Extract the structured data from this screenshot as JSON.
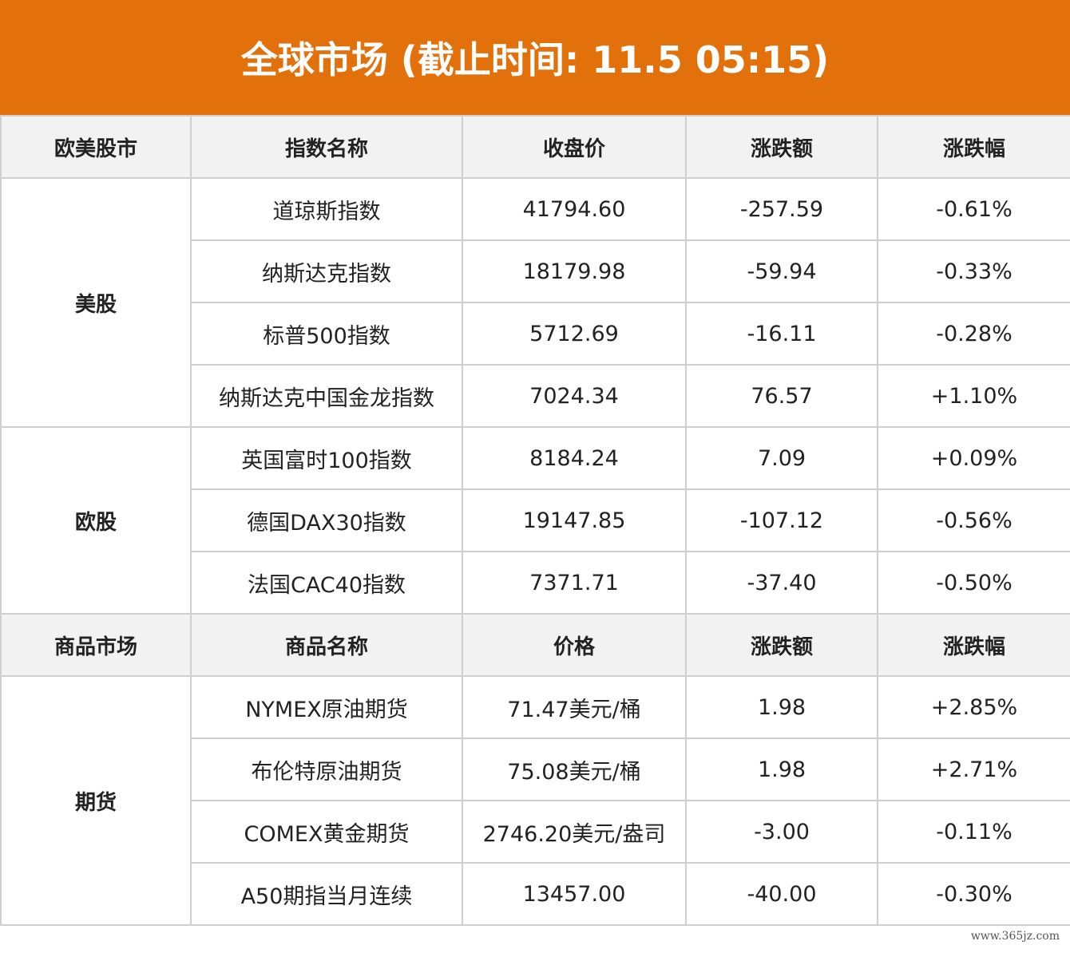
{
  "banner": {
    "title": "全球市场 (截止时间: 11.5 05:15)"
  },
  "equities": {
    "headers": [
      "欧美股市",
      "指数名称",
      "收盘价",
      "涨跌额",
      "涨跌幅"
    ],
    "groups": [
      {
        "name": "美股",
        "rows": [
          {
            "name": "道琼斯指数",
            "close": "41794.60",
            "change": "-257.59",
            "pct": "-0.61%"
          },
          {
            "name": "纳斯达克指数",
            "close": "18179.98",
            "change": "-59.94",
            "pct": "-0.33%"
          },
          {
            "name": "标普500指数",
            "close": "5712.69",
            "change": "-16.11",
            "pct": "-0.28%"
          },
          {
            "name": "纳斯达克中国金龙指数",
            "close": "7024.34",
            "change": "76.57",
            "pct": "+1.10%"
          }
        ]
      },
      {
        "name": "欧股",
        "rows": [
          {
            "name": "英国富时100指数",
            "close": "8184.24",
            "change": "7.09",
            "pct": "+0.09%"
          },
          {
            "name": "德国DAX30指数",
            "close": "19147.85",
            "change": "-107.12",
            "pct": "-0.56%"
          },
          {
            "name": "法国CAC40指数",
            "close": "7371.71",
            "change": "-37.40",
            "pct": "-0.50%"
          }
        ]
      }
    ]
  },
  "commodities": {
    "headers": [
      "商品市场",
      "商品名称",
      "价格",
      "涨跌额",
      "涨跌幅"
    ],
    "groups": [
      {
        "name": "期货",
        "rows": [
          {
            "name": "NYMEX原油期货",
            "close": "71.47美元/桶",
            "change": "1.98",
            "pct": "+2.85%"
          },
          {
            "name": "布伦特原油期货",
            "close": "75.08美元/桶",
            "change": "1.98",
            "pct": "+2.71%"
          },
          {
            "name": "COMEX黄金期货",
            "close": "2746.20美元/盎司",
            "change": "-3.00",
            "pct": "-0.11%"
          },
          {
            "name": "A50期指当月连续",
            "close": "13457.00",
            "change": "-40.00",
            "pct": "-0.30%"
          }
        ]
      }
    ]
  },
  "colors": {
    "banner": "#e2710c",
    "up": "#e8150e",
    "down": "#1e9c35",
    "header_bg": "#f2f2f2",
    "border": "#cfcfcf"
  },
  "watermark": "www.365jz.com"
}
